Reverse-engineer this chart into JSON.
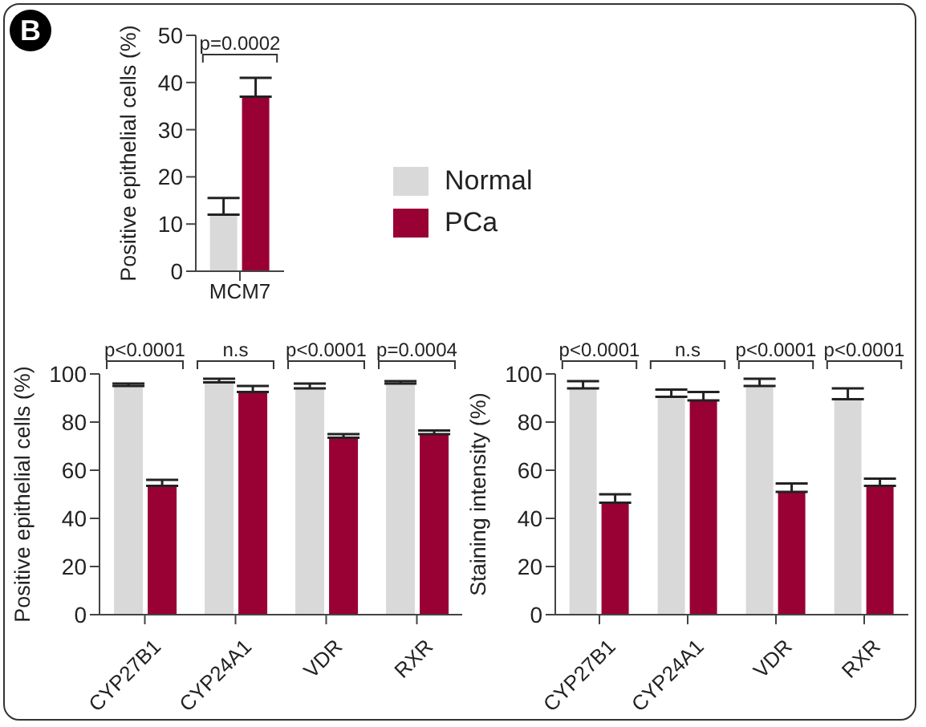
{
  "chart_data": [
    {
      "type": "bar",
      "ylabel": "Positive epithelial cells (%)",
      "categories": [
        "MCM7"
      ],
      "series": [
        {
          "name": "Normal",
          "color": "#d9d9d9",
          "values": [
            12
          ],
          "errors": [
            3.5
          ]
        },
        {
          "name": "PCa",
          "color": "#990033",
          "values": [
            37
          ],
          "errors": [
            4
          ]
        }
      ],
      "ylim": [
        0,
        50
      ],
      "yticks": [
        0,
        10,
        20,
        30,
        40,
        50
      ],
      "grid": false,
      "legend": "right",
      "annotations": [
        "B",
        "p=0.0002"
      ]
    },
    {
      "type": "bar",
      "ylabel": "Positive epithelial cells (%)",
      "categories": [
        "CYP27B1",
        "CYP24A1",
        "VDR",
        "RXR"
      ],
      "series": [
        {
          "color": "#d9d9d9",
          "values": [
            95,
            96.5,
            94,
            96
          ],
          "errors": [
            1,
            1.5,
            2,
            1
          ]
        },
        {
          "color": "#990033",
          "values": [
            53.5,
            92.5,
            73.5,
            75
          ],
          "errors": [
            2.5,
            2.5,
            1.5,
            1.5
          ]
        }
      ],
      "ylim": [
        0,
        100
      ],
      "yticks": [
        0,
        20,
        40,
        60,
        80,
        100
      ],
      "grid": false,
      "legend": false,
      "annotations": [
        "p<0.0001",
        "n.s",
        "p<0.0001",
        "p=0.0004"
      ]
    },
    {
      "type": "bar",
      "ylabel": "Staining intensity (%)",
      "categories": [
        "CYP27B1",
        "CYP24A1",
        "VDR",
        "RXR"
      ],
      "series": [
        {
          "color": "#d9d9d9",
          "values": [
            94,
            90.5,
            95,
            89.5
          ],
          "errors": [
            3,
            3,
            3,
            4.5
          ]
        },
        {
          "color": "#990033",
          "values": [
            46.5,
            89,
            51,
            53.5
          ],
          "errors": [
            3.5,
            3.5,
            3.5,
            3
          ]
        }
      ],
      "ylim": [
        0,
        100
      ],
      "yticks": [
        0,
        20,
        40,
        60,
        80,
        100
      ],
      "grid": false,
      "legend": false,
      "annotations": [
        "p<0.0001",
        "n.s",
        "p<0.0001",
        "p<0.0001"
      ]
    }
  ]
}
